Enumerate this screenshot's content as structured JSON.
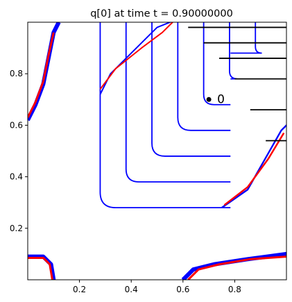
{
  "chart_data": {
    "type": "contour",
    "title": "q[0] at time t =     0.90000000",
    "xlabel": "",
    "ylabel": "",
    "xlim": [
      0.0,
      1.0
    ],
    "ylim": [
      0.0,
      1.0
    ],
    "xticks": [
      0.2,
      0.4,
      0.6,
      0.8
    ],
    "yticks": [
      0.2,
      0.4,
      0.6,
      0.8
    ],
    "xtick_labels": [
      "0.2",
      "0.4",
      "0.6",
      "0.8"
    ],
    "ytick_labels": [
      "0.2",
      "0.4",
      "0.6",
      "0.8"
    ],
    "grid": false,
    "colors": {
      "contour_black": "#000000",
      "contour_blue": "#0000ff",
      "contour_red": "#ff0000"
    },
    "contour_levels": [
      {
        "name": "c1",
        "x0": 0.28,
        "y0": 0.28,
        "r": 0.06
      },
      {
        "name": "c2",
        "x0": 0.38,
        "y0": 0.38,
        "r": 0.05
      },
      {
        "name": "c3",
        "x0": 0.48,
        "y0": 0.48,
        "r": 0.05
      },
      {
        "name": "c4",
        "x0": 0.58,
        "y0": 0.58,
        "r": 0.05
      },
      {
        "name": "c5",
        "x0": 0.68,
        "y0": 0.68,
        "r": 0.04
      },
      {
        "name": "c6",
        "x0": 0.78,
        "y0": 0.78,
        "r": 0.03
      },
      {
        "name": "c7",
        "x0": 0.88,
        "y0": 0.88,
        "r": 0.025
      }
    ],
    "marker": {
      "x": 0.7,
      "y": 0.7,
      "label": "0"
    }
  }
}
